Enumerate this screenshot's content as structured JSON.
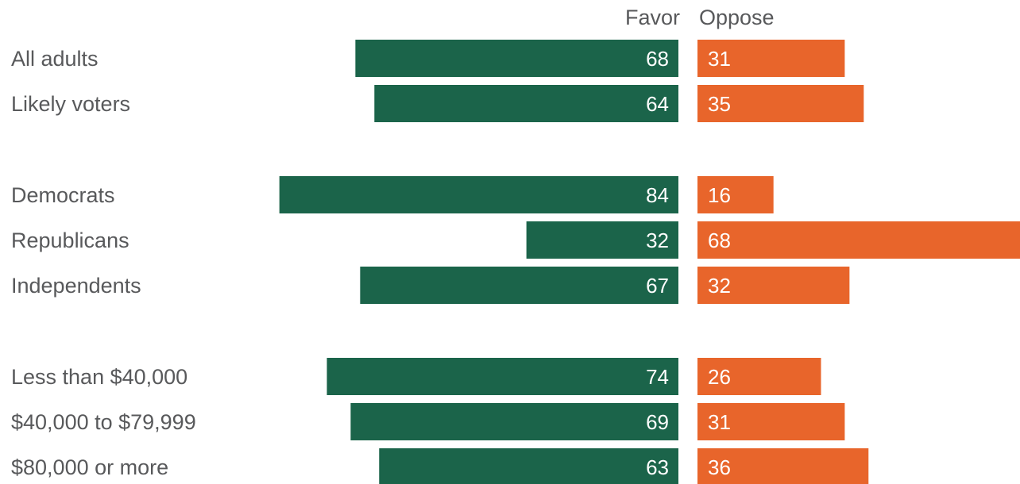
{
  "chart_data": {
    "type": "bar",
    "orientation": "horizontal-diverging",
    "columns": [
      "Favor",
      "Oppose"
    ],
    "categories": [
      "All adults",
      "Likely voters",
      "Democrats",
      "Republicans",
      "Independents",
      "Less than $40,000",
      "$40,000 to $79,999",
      "$80,000 or more"
    ],
    "groups": [
      [
        0,
        1
      ],
      [
        2,
        3,
        4
      ],
      [
        5,
        6,
        7
      ]
    ],
    "series": [
      {
        "name": "Favor",
        "color": "#1b644a",
        "values": [
          68,
          64,
          84,
          32,
          67,
          74,
          69,
          63
        ]
      },
      {
        "name": "Oppose",
        "color": "#e8652b",
        "values": [
          31,
          35,
          16,
          68,
          32,
          26,
          31,
          36
        ]
      }
    ],
    "xlim": [
      0,
      100
    ],
    "grid": false,
    "legend": "none"
  }
}
